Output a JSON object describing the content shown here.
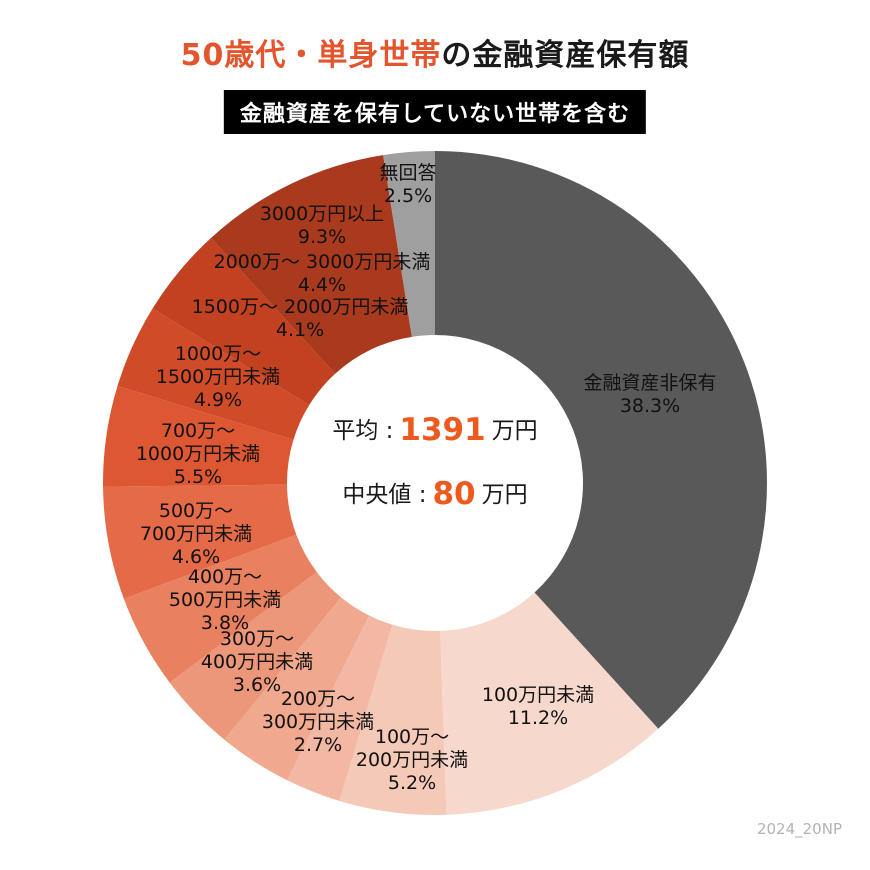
{
  "header": {
    "title_highlight": "50歳代・単身世帯",
    "title_rest": "の金融資産保有額",
    "subtitle": "金融資産を保有していない世帯を含む"
  },
  "footer": {
    "note": "2024_20NP"
  },
  "colors": {
    "accent": "#e2552d",
    "value_orange": "#ee5a1e",
    "nonholder_gray": "#595959",
    "noanswer_gray": "#9f9f9f"
  },
  "chart_data": {
    "type": "pie",
    "variant": "donut",
    "title": "50歳代・単身世帯の金融資産保有額",
    "subtitle": "金融資産を保有していない世帯を含む",
    "start_angle_deg": 0,
    "direction": "clockwise",
    "legend_position": "labels-around-chart",
    "center": {
      "mean_label": "平均 :",
      "mean_value": "1391",
      "mean_unit": "万円",
      "median_label": "中央値 :",
      "median_value": "80",
      "median_unit": "万円"
    },
    "segments": [
      {
        "label": "金融資産非保有",
        "value": 38.3,
        "color": "#595959",
        "label_lines": [
          "金融資産非保有",
          "38.3%"
        ]
      },
      {
        "label": "100万円未満",
        "value": 11.2,
        "color": "#f7d8cc",
        "label_lines": [
          "100万円未満",
          "11.2%"
        ]
      },
      {
        "label": "100万〜200万円未満",
        "value": 5.2,
        "color": "#f5c9b8",
        "label_lines": [
          "100万〜",
          "200万円未満",
          "5.2%"
        ]
      },
      {
        "label": "200万〜300万円未満",
        "value": 2.7,
        "color": "#f2b8a3",
        "label_lines": [
          "200万〜",
          "300万円未満",
          "2.7%"
        ]
      },
      {
        "label": "300万〜400万円未満",
        "value": 3.6,
        "color": "#f0a98f",
        "label_lines": [
          "300万〜",
          "400万円未満",
          "3.6%"
        ]
      },
      {
        "label": "400万〜500万円未満",
        "value": 3.8,
        "color": "#ed977a",
        "label_lines": [
          "400万〜",
          "500万円未満",
          "3.8%"
        ]
      },
      {
        "label": "500万〜700万円未満",
        "value": 4.6,
        "color": "#e98161",
        "label_lines": [
          "500万〜",
          "700万円未満",
          "4.6%"
        ]
      },
      {
        "label": "700万〜1000万円未満",
        "value": 5.5,
        "color": "#e56a48",
        "label_lines": [
          "700万〜",
          "1000万円未満",
          "5.5%"
        ]
      },
      {
        "label": "1000万〜1500万円未満",
        "value": 4.9,
        "color": "#dd5733",
        "label_lines": [
          "1000万〜",
          "1500万円未満",
          "4.9%"
        ]
      },
      {
        "label": "1500万〜2000万円未満",
        "value": 4.1,
        "color": "#d04b28",
        "label_lines": [
          "1500万〜 2000万円未満",
          "4.1%"
        ]
      },
      {
        "label": "2000万〜3000万円未満",
        "value": 4.4,
        "color": "#c14121",
        "label_lines": [
          "2000万〜 3000万円未満",
          "4.4%"
        ]
      },
      {
        "label": "3000万円以上",
        "value": 9.3,
        "color": "#a93a1e",
        "label_lines": [
          "3000万円以上",
          "9.3%"
        ]
      },
      {
        "label": "無回答",
        "value": 2.5,
        "color": "#9f9f9f",
        "label_lines": [
          "無回答",
          "2.5%"
        ]
      }
    ]
  }
}
